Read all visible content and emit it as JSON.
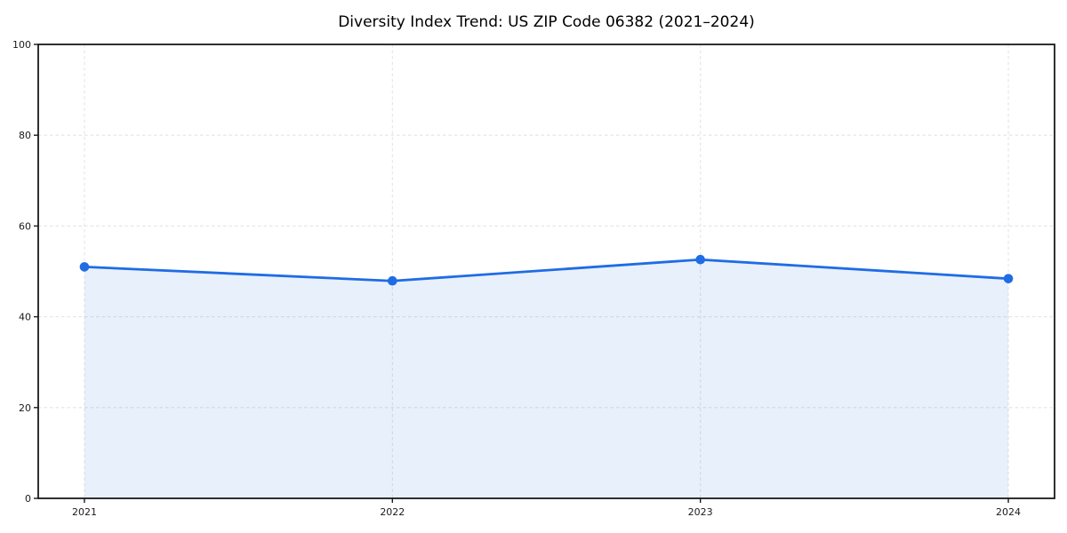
{
  "chart_data": {
    "type": "area",
    "title": "Diversity Index Trend: US ZIP Code 06382 (2021–2024)",
    "categories": [
      "2021",
      "2022",
      "2023",
      "2024"
    ],
    "x": [
      2021,
      2022,
      2023,
      2024
    ],
    "series": [
      {
        "name": "Diversity Index",
        "values": [
          51.0,
          47.9,
          52.6,
          48.4
        ]
      }
    ],
    "xlabel": "",
    "ylabel": "",
    "xlim": [
      2020.85,
      2024.15
    ],
    "ylim": [
      0,
      100
    ],
    "yticks": [
      0,
      20,
      40,
      60,
      80,
      100
    ],
    "grid": true,
    "grid_style": "dashed",
    "legend": false,
    "marker": "circle",
    "colors": {
      "line": "#1f6ce4",
      "marker": "#1f6ce4",
      "fill": "rgba(31, 108, 228, 0.10)",
      "grid": "#e4e4e4",
      "spine": "#1a1a1a",
      "tick_text": "#1a1a1a",
      "title_text": "#000000",
      "background": "#ffffff"
    }
  }
}
